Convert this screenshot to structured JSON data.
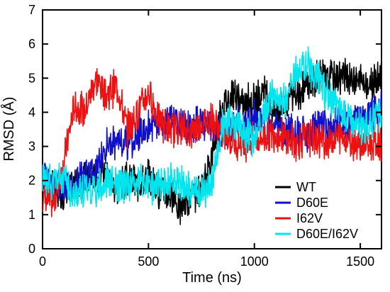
{
  "chart_data": {
    "type": "line",
    "title": "",
    "xlabel": "Time (ns)",
    "ylabel": "RMSD (Å)",
    "xlim": [
      0,
      1600
    ],
    "ylim": [
      0,
      7
    ],
    "x_ticks": [
      "0",
      "500",
      "1000",
      "1500"
    ],
    "y_ticks": [
      "0",
      "1",
      "2",
      "3",
      "4",
      "5",
      "6",
      "7"
    ],
    "grid": false,
    "legend_position": "bottom-right",
    "series": [
      {
        "name": "WT",
        "color": "#000000",
        "x": [
          0,
          50,
          100,
          150,
          200,
          250,
          300,
          350,
          400,
          450,
          500,
          550,
          600,
          650,
          700,
          750,
          800,
          850,
          900,
          950,
          1000,
          1050,
          1100,
          1150,
          1200,
          1250,
          1300,
          1350,
          1400,
          1450,
          1500,
          1550,
          1600
        ],
        "values": [
          2.2,
          1.8,
          1.6,
          1.9,
          2.0,
          2.1,
          2.2,
          1.8,
          2.0,
          1.9,
          2.1,
          1.7,
          1.6,
          1.2,
          1.5,
          1.6,
          2.8,
          4.3,
          4.5,
          4.2,
          4.4,
          4.5,
          4.0,
          4.3,
          4.6,
          4.8,
          5.0,
          5.0,
          5.1,
          5.0,
          4.9,
          4.8,
          5.0
        ]
      },
      {
        "name": "D60E",
        "color": "#1010cc",
        "x": [
          0,
          50,
          100,
          150,
          200,
          250,
          300,
          350,
          400,
          450,
          500,
          550,
          600,
          650,
          700,
          750,
          800,
          850,
          900,
          950,
          1000,
          1050,
          1100,
          1150,
          1200,
          1250,
          1300,
          1350,
          1400,
          1450,
          1500,
          1550,
          1600
        ],
        "values": [
          2.3,
          1.9,
          1.8,
          2.0,
          2.1,
          2.2,
          3.0,
          3.2,
          3.1,
          3.3,
          3.6,
          3.7,
          3.8,
          3.6,
          3.5,
          3.7,
          3.6,
          3.4,
          3.6,
          3.7,
          3.8,
          3.5,
          3.6,
          3.4,
          3.5,
          3.3,
          3.6,
          3.5,
          3.7,
          3.6,
          3.8,
          3.9,
          4.1
        ]
      },
      {
        "name": "I62V",
        "color": "#ee1111",
        "x": [
          0,
          50,
          100,
          150,
          200,
          250,
          300,
          350,
          400,
          450,
          500,
          550,
          600,
          650,
          700,
          750,
          800,
          850,
          900,
          950,
          1000,
          1050,
          1100,
          1150,
          1200,
          1250,
          1300,
          1350,
          1400,
          1450,
          1500,
          1550,
          1600
        ],
        "values": [
          1.5,
          1.3,
          2.5,
          4.2,
          4.0,
          5.0,
          4.5,
          4.8,
          3.5,
          4.0,
          4.6,
          3.8,
          3.5,
          3.6,
          3.4,
          3.7,
          3.8,
          3.3,
          3.2,
          3.1,
          3.2,
          3.3,
          3.4,
          3.2,
          3.1,
          3.3,
          3.2,
          3.1,
          3.3,
          3.2,
          3.1,
          3.0,
          3.1
        ]
      },
      {
        "name": "D60E/I62V",
        "color": "#00e5ee",
        "x": [
          0,
          50,
          100,
          150,
          200,
          250,
          300,
          350,
          400,
          450,
          500,
          550,
          600,
          650,
          700,
          750,
          800,
          850,
          900,
          950,
          1000,
          1050,
          1100,
          1150,
          1200,
          1250,
          1300,
          1350,
          1400,
          1450,
          1500,
          1550,
          1600
        ],
        "values": [
          2.0,
          1.9,
          2.1,
          1.5,
          1.8,
          1.7,
          2.0,
          1.8,
          1.9,
          2.0,
          1.8,
          1.9,
          2.0,
          1.9,
          1.7,
          1.6,
          2.0,
          3.5,
          3.8,
          3.4,
          3.2,
          4.0,
          4.6,
          4.3,
          5.2,
          5.4,
          5.0,
          4.4,
          4.2,
          3.8,
          3.5,
          3.7,
          3.9
        ]
      }
    ]
  }
}
